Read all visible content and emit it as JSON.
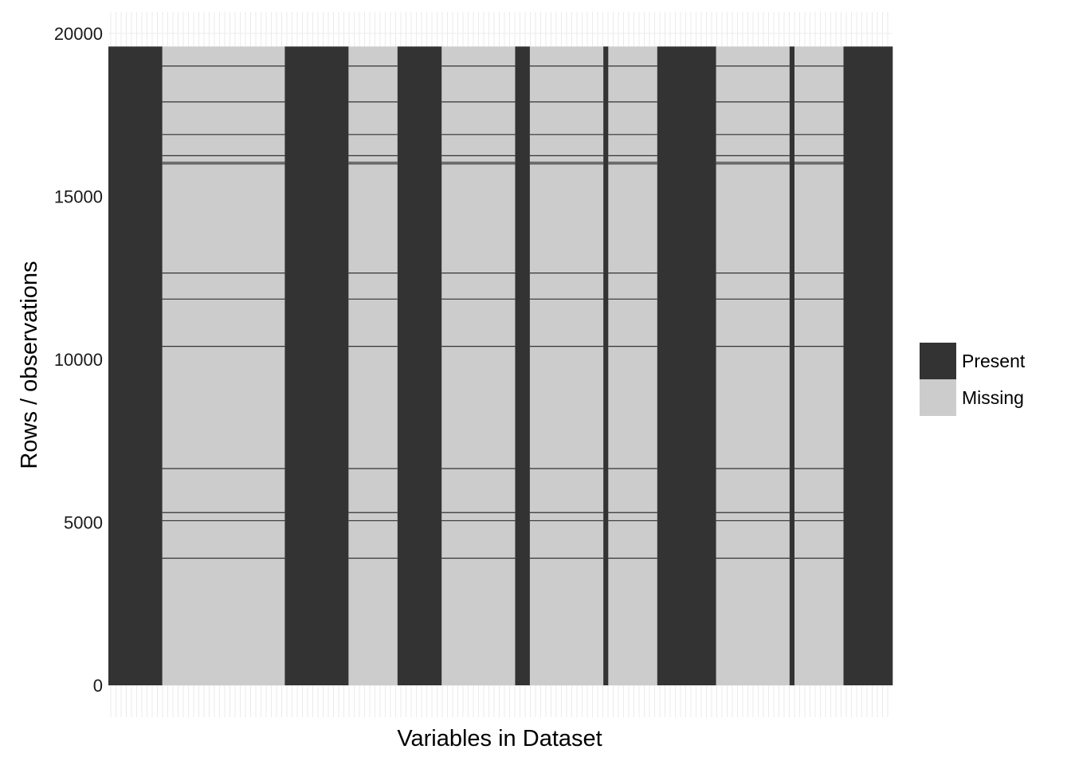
{
  "chart_data": {
    "type": "heatmap",
    "title": "",
    "xlabel": "Variables in Dataset",
    "ylabel": "Rows / observations",
    "ylim": [
      0,
      19600
    ],
    "yticks": [
      0,
      5000,
      10000,
      15000,
      20000
    ],
    "n_rows": 19600,
    "grid": true,
    "legend_position": "right",
    "legend": [
      {
        "name": "Present",
        "color": "#333333"
      },
      {
        "name": "Missing",
        "color": "#cccccc"
      }
    ],
    "variable_widths": [
      1.1,
      2.5,
      1.3,
      1.0,
      0.9,
      1.5,
      0.3,
      1.5,
      0.1,
      1.0,
      1.2,
      1.5,
      0.1,
      1.0,
      1.0
    ],
    "variables_status": [
      "present",
      "missing",
      "present",
      "missing",
      "present",
      "missing",
      "present",
      "missing",
      "present",
      "missing",
      "present",
      "missing",
      "present",
      "missing",
      "present"
    ],
    "present_rows_in_missing_columns": [
      3900,
      5050,
      5300,
      6650,
      10400,
      11850,
      12650,
      16000,
      16050,
      16250,
      16900,
      17900,
      19000
    ]
  }
}
